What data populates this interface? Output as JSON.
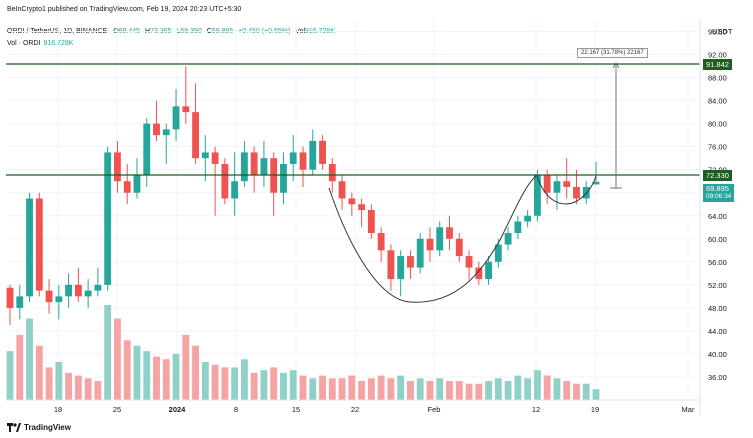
{
  "header": {
    "publisher": "BeInCrypto1 published on TradingView.com, Feb 19, 2024 20:23 UTC+5:30",
    "currency": "USDT"
  },
  "legend": {
    "symbol": "ORDI / TetherUS, 1D, BINANCE",
    "o_label": "O",
    "o_value": "69.445",
    "h_label": "H",
    "h_value": "73.365",
    "l_label": "L",
    "l_value": "69.390",
    "c_label": "C",
    "c_value": "69.895",
    "change": "+0.450 (+0.65%)",
    "vol_label": "Vol",
    "vol_value": "916.728K",
    "vol_title": "Vol · ORDI",
    "vol_title_value": "916.728K"
  },
  "price_tags": {
    "resistance_top": "91.842",
    "resistance_mid": "72.330",
    "current": "69.895",
    "countdown": "09:06:34"
  },
  "measure_label": "22.167 (31.78%) 22167",
  "colors": {
    "up": "#26a69a",
    "down": "#ef5350",
    "up_vol": "#8fd1c9",
    "down_vol": "#f5a3a3",
    "line": "#1b5e20"
  },
  "chart_data": {
    "type": "candlestick",
    "y_ticks": [
      96,
      92,
      88,
      84,
      80,
      76,
      72,
      68,
      64,
      60,
      56,
      52,
      48,
      44,
      40,
      36
    ],
    "x_ticks": [
      "18",
      "25",
      "2024",
      "8",
      "15",
      "22",
      "Feb",
      "12",
      "19",
      "Mar"
    ],
    "ylim": [
      32,
      98
    ],
    "horizontal_lines": [
      91.842,
      72.33
    ],
    "candles": [
      [
        51.5,
        52,
        45,
        48
      ],
      [
        48,
        52,
        46,
        50
      ],
      [
        50,
        68,
        49,
        67
      ],
      [
        67,
        68,
        50,
        51
      ],
      [
        51,
        53,
        47,
        49
      ],
      [
        49,
        52,
        46,
        50
      ],
      [
        50,
        54,
        48,
        52
      ],
      [
        52,
        55,
        49,
        50
      ],
      [
        50,
        53,
        48,
        51
      ],
      [
        51,
        55,
        50,
        52
      ],
      [
        52,
        76,
        51,
        75
      ],
      [
        75,
        77,
        68,
        70
      ],
      [
        70,
        73,
        66,
        68
      ],
      [
        68,
        74,
        67,
        71
      ],
      [
        71,
        81,
        69,
        80
      ],
      [
        80,
        84,
        77,
        78
      ],
      [
        78,
        80,
        73,
        79
      ],
      [
        79,
        86,
        77,
        83
      ],
      [
        83,
        90,
        80,
        82
      ],
      [
        82,
        87,
        73,
        74
      ],
      [
        74,
        78,
        70,
        75
      ],
      [
        75,
        76,
        64,
        73
      ],
      [
        73,
        74,
        66,
        67
      ],
      [
        67,
        75,
        64,
        70
      ],
      [
        70,
        77,
        69,
        75
      ],
      [
        75,
        76,
        68,
        71
      ],
      [
        71,
        77,
        69,
        74
      ],
      [
        74,
        75,
        64,
        68
      ],
      [
        68,
        75,
        66,
        73
      ],
      [
        73,
        78,
        70,
        75
      ],
      [
        75,
        76,
        69,
        72
      ],
      [
        72,
        79,
        71,
        77
      ],
      [
        77,
        78,
        72,
        73
      ],
      [
        73,
        74,
        68,
        70
      ],
      [
        70,
        71,
        65,
        67
      ],
      [
        67,
        68,
        64,
        66
      ],
      [
        66,
        67,
        62,
        65
      ],
      [
        65,
        66,
        60,
        61
      ],
      [
        61,
        62,
        56,
        58
      ],
      [
        58,
        59,
        51,
        53
      ],
      [
        53,
        58,
        50,
        57
      ],
      [
        57,
        58,
        53,
        55
      ],
      [
        55,
        61,
        54,
        60
      ],
      [
        60,
        62,
        56,
        58
      ],
      [
        58,
        63,
        57,
        62
      ],
      [
        62,
        64,
        58,
        60
      ],
      [
        60,
        61,
        56,
        57
      ],
      [
        57,
        58,
        53,
        55
      ],
      [
        55,
        56,
        52,
        53
      ],
      [
        53,
        57,
        52,
        56
      ],
      [
        56,
        60,
        55,
        59
      ],
      [
        59,
        62,
        58,
        61
      ],
      [
        61,
        64,
        60,
        63
      ],
      [
        63,
        65,
        62,
        64
      ],
      [
        64,
        72,
        63,
        71
      ],
      [
        71,
        72,
        66,
        68
      ],
      [
        68,
        71,
        65,
        70
      ],
      [
        70,
        74,
        67,
        69
      ],
      [
        69,
        72,
        66,
        67
      ],
      [
        67,
        70,
        66,
        69
      ],
      [
        69.445,
        73.365,
        69.39,
        69.895
      ]
    ],
    "volumes": [
      [
        18,
        1
      ],
      [
        24,
        0
      ],
      [
        30,
        1
      ],
      [
        20,
        0
      ],
      [
        12,
        0
      ],
      [
        14,
        1
      ],
      [
        10,
        0
      ],
      [
        9,
        0
      ],
      [
        8,
        0
      ],
      [
        7,
        0
      ],
      [
        35,
        1
      ],
      [
        30,
        0
      ],
      [
        22,
        0
      ],
      [
        20,
        1
      ],
      [
        18,
        1
      ],
      [
        16,
        0
      ],
      [
        15,
        0
      ],
      [
        17,
        1
      ],
      [
        24,
        0
      ],
      [
        20,
        0
      ],
      [
        14,
        1
      ],
      [
        13,
        0
      ],
      [
        12,
        0
      ],
      [
        12,
        1
      ],
      [
        15,
        1
      ],
      [
        10,
        0
      ],
      [
        11,
        1
      ],
      [
        12,
        0
      ],
      [
        10,
        1
      ],
      [
        11,
        1
      ],
      [
        9,
        0
      ],
      [
        8,
        1
      ],
      [
        9,
        0
      ],
      [
        8,
        0
      ],
      [
        8,
        0
      ],
      [
        9,
        0
      ],
      [
        7,
        0
      ],
      [
        8,
        0
      ],
      [
        9,
        0
      ],
      [
        8,
        0
      ],
      [
        9,
        1
      ],
      [
        7,
        0
      ],
      [
        8,
        1
      ],
      [
        7,
        0
      ],
      [
        8,
        1
      ],
      [
        7,
        0
      ],
      [
        7,
        0
      ],
      [
        6,
        0
      ],
      [
        6,
        0
      ],
      [
        7,
        1
      ],
      [
        8,
        1
      ],
      [
        7,
        1
      ],
      [
        9,
        1
      ],
      [
        8,
        1
      ],
      [
        11,
        1
      ],
      [
        9,
        0
      ],
      [
        8,
        1
      ],
      [
        7,
        0
      ],
      [
        6,
        0
      ],
      [
        6,
        1
      ],
      [
        4,
        1
      ]
    ]
  }
}
